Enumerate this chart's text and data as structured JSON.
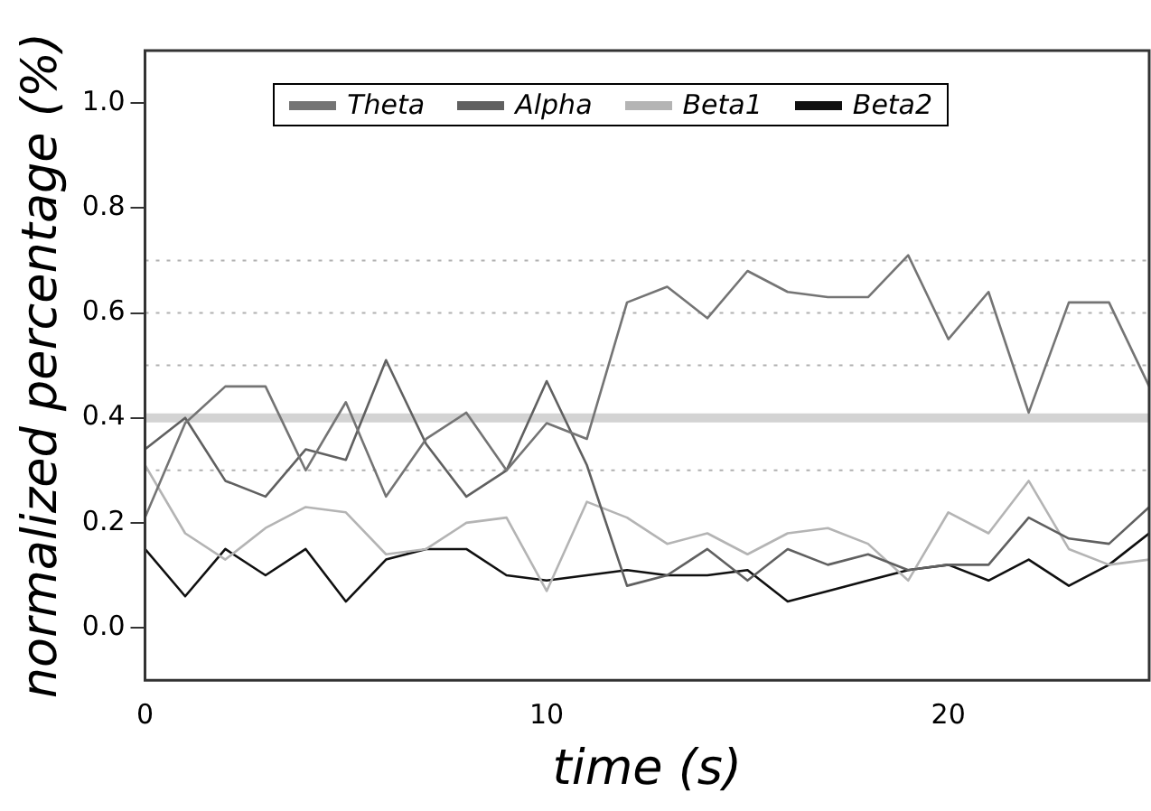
{
  "chart_data": {
    "type": "line",
    "xlabel": "time (s)",
    "ylabel": "normalized percentage (%)",
    "x": [
      0,
      1,
      2,
      3,
      4,
      5,
      6,
      7,
      8,
      9,
      10,
      11,
      12,
      13,
      14,
      15,
      16,
      17,
      18,
      19,
      20,
      21,
      22,
      23,
      24,
      25
    ],
    "xlim": [
      0,
      25
    ],
    "xticks": [
      0,
      10,
      20
    ],
    "ylim": [
      -0.1,
      1.1
    ],
    "yticks": [
      {
        "value": 0,
        "label": "0.0"
      },
      {
        "value": 0.2,
        "label": "0.2"
      },
      {
        "value": 0.4,
        "label": "0.4"
      },
      {
        "value": 0.6,
        "label": "0.6"
      },
      {
        "value": 0.8,
        "label": "0.8"
      },
      {
        "value": 1,
        "label": "1.0"
      }
    ],
    "grid": false,
    "legend": "top",
    "marker": "none",
    "line_style": "solid",
    "ref_lines": [
      {
        "axis": "y",
        "value": 0.3,
        "color": "#b0b0b0",
        "line_style": "dotted"
      },
      {
        "axis": "y",
        "value": 0.5,
        "color": "#b0b0b0",
        "line_style": "dotted"
      },
      {
        "axis": "y",
        "value": 0.6,
        "color": "#b0b0b0",
        "line_style": "dotted"
      },
      {
        "axis": "y",
        "value": 0.7,
        "color": "#b0b0b0",
        "line_style": "dotted"
      },
      {
        "axis": "y",
        "value": 0.4,
        "color": "#d3d3d3",
        "line_style": "solid"
      }
    ],
    "series": [
      {
        "name": "Theta",
        "color": "#747474",
        "values": [
          0.21,
          0.39,
          0.46,
          0.46,
          0.3,
          0.43,
          0.25,
          0.36,
          0.41,
          0.3,
          0.39,
          0.36,
          0.62,
          0.65,
          0.59,
          0.68,
          0.64,
          0.63,
          0.63,
          0.71,
          0.55,
          0.64,
          0.41,
          0.62,
          0.62,
          0.46
        ]
      },
      {
        "name": "Alpha",
        "color": "#606060",
        "values": [
          0.34,
          0.4,
          0.28,
          0.25,
          0.34,
          0.32,
          0.51,
          0.35,
          0.25,
          0.3,
          0.47,
          0.31,
          0.08,
          0.1,
          0.15,
          0.09,
          0.15,
          0.12,
          0.14,
          0.11,
          0.12,
          0.12,
          0.21,
          0.17,
          0.16,
          0.23
        ]
      },
      {
        "name": "Beta1",
        "color": "#b4b4b4",
        "values": [
          0.31,
          0.18,
          0.13,
          0.19,
          0.23,
          0.22,
          0.14,
          0.15,
          0.2,
          0.21,
          0.07,
          0.24,
          0.21,
          0.16,
          0.18,
          0.14,
          0.18,
          0.19,
          0.16,
          0.09,
          0.22,
          0.18,
          0.28,
          0.15,
          0.12,
          0.13
        ]
      },
      {
        "name": "Beta2",
        "color": "#101010",
        "values": [
          0.15,
          0.06,
          0.15,
          0.1,
          0.15,
          0.05,
          0.13,
          0.15,
          0.15,
          0.1,
          0.09,
          0.1,
          0.11,
          0.1,
          0.1,
          0.11,
          0.05,
          0.07,
          0.09,
          0.11,
          0.12,
          0.09,
          0.13,
          0.08,
          0.12,
          0.18
        ]
      }
    ]
  }
}
